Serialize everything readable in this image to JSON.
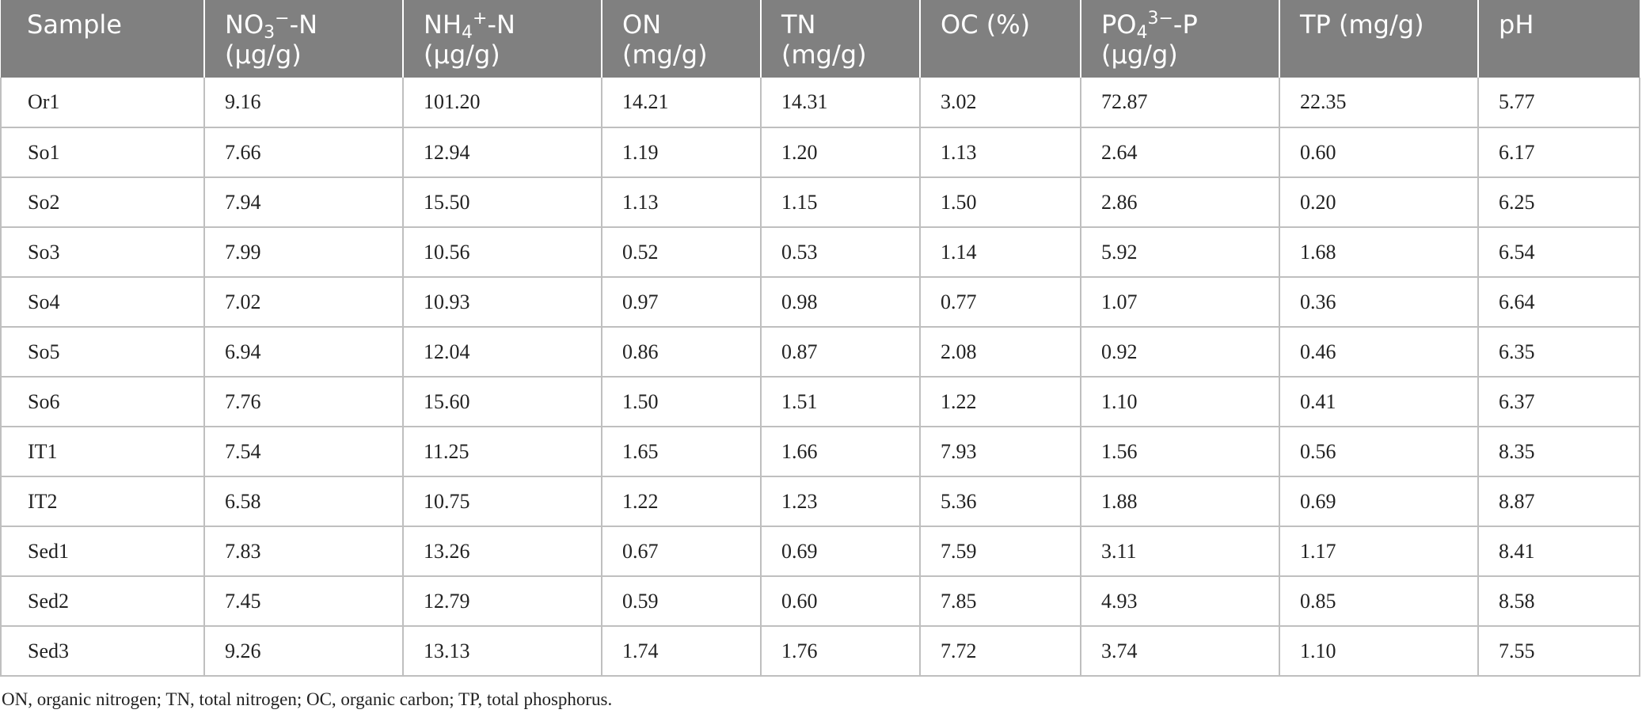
{
  "table": {
    "headers": [
      {
        "name": "Sample",
        "unit": ""
      },
      {
        "name": "NO3−-N",
        "base": "NO",
        "sub": "3",
        "sup": "−",
        "tail": "-N",
        "unit": "(µg/g)"
      },
      {
        "name": "NH4+-N",
        "base": "NH",
        "sub": "4",
        "sup": "+",
        "tail": "-N",
        "unit": "(µg/g)"
      },
      {
        "name": "ON",
        "unit": "(mg/g)"
      },
      {
        "name": "TN",
        "unit": "(mg/g)"
      },
      {
        "name": "OC (%)",
        "unit": ""
      },
      {
        "name": "PO43−-P",
        "base": "PO",
        "sub": "4",
        "sup": "3−",
        "tail": "-P",
        "unit": "(µg/g)"
      },
      {
        "name": "TP (mg/g)",
        "unit": ""
      },
      {
        "name": "pH",
        "unit": ""
      }
    ],
    "rows": [
      [
        "Or1",
        "9.16",
        "101.20",
        "14.21",
        "14.31",
        "3.02",
        "72.87",
        "22.35",
        "5.77"
      ],
      [
        "So1",
        "7.66",
        "12.94",
        "1.19",
        "1.20",
        "1.13",
        "2.64",
        "0.60",
        "6.17"
      ],
      [
        "So2",
        "7.94",
        "15.50",
        "1.13",
        "1.15",
        "1.50",
        "2.86",
        "0.20",
        "6.25"
      ],
      [
        "So3",
        "7.99",
        "10.56",
        "0.52",
        "0.53",
        "1.14",
        "5.92",
        "1.68",
        "6.54"
      ],
      [
        "So4",
        "7.02",
        "10.93",
        "0.97",
        "0.98",
        "0.77",
        "1.07",
        "0.36",
        "6.64"
      ],
      [
        "So5",
        "6.94",
        "12.04",
        "0.86",
        "0.87",
        "2.08",
        "0.92",
        "0.46",
        "6.35"
      ],
      [
        "So6",
        "7.76",
        "15.60",
        "1.50",
        "1.51",
        "1.22",
        "1.10",
        "0.41",
        "6.37"
      ],
      [
        "IT1",
        "7.54",
        "11.25",
        "1.65",
        "1.66",
        "7.93",
        "1.56",
        "0.56",
        "8.35"
      ],
      [
        "IT2",
        "6.58",
        "10.75",
        "1.22",
        "1.23",
        "5.36",
        "1.88",
        "0.69",
        "8.87"
      ],
      [
        "Sed1",
        "7.83",
        "13.26",
        "0.67",
        "0.69",
        "7.59",
        "3.11",
        "1.17",
        "8.41"
      ],
      [
        "Sed2",
        "7.45",
        "12.79",
        "0.59",
        "0.60",
        "7.85",
        "4.93",
        "0.85",
        "8.58"
      ],
      [
        "Sed3",
        "9.26",
        "13.13",
        "1.74",
        "1.76",
        "7.72",
        "3.74",
        "1.10",
        "7.55"
      ]
    ]
  },
  "footnote": "ON, organic nitrogen; TN, total nitrogen; OC, organic carbon; TP, total phosphorus.",
  "colors": {
    "header_bg": "#808080",
    "header_text": "#ffffff",
    "grid_line": "#bfbfbf",
    "body_text": "#222222"
  }
}
